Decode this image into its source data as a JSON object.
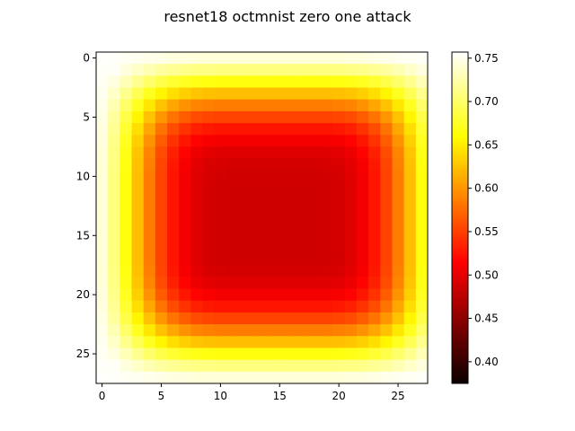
{
  "chart_data": {
    "type": "heatmap",
    "title": "resnet18 octmnist zero one attack",
    "colormap": "hot",
    "xlabel": "",
    "ylabel": "",
    "x_ticks": [
      0,
      5,
      10,
      15,
      20,
      25
    ],
    "y_ticks": [
      0,
      5,
      10,
      15,
      20,
      25
    ],
    "colorbar_ticks": [
      0.4,
      0.45,
      0.5,
      0.55,
      0.6,
      0.65,
      0.7,
      0.75
    ],
    "colorbar_tick_labels": [
      "0.40",
      "0.45",
      "0.50",
      "0.55",
      "0.60",
      "0.65",
      "0.70",
      "0.75"
    ],
    "vmin": 0.375,
    "vmax": 0.757,
    "rows": 28,
    "cols": 28,
    "values": [
      [
        0.756,
        0.755,
        0.753,
        0.751,
        0.749,
        0.747,
        0.745,
        0.744,
        0.743,
        0.742,
        0.742,
        0.742,
        0.742,
        0.742,
        0.742,
        0.742,
        0.742,
        0.742,
        0.742,
        0.742,
        0.743,
        0.744,
        0.745,
        0.747,
        0.749,
        0.751,
        0.753,
        0.755
      ],
      [
        0.755,
        0.754,
        0.745,
        0.736,
        0.728,
        0.721,
        0.716,
        0.712,
        0.71,
        0.709,
        0.708,
        0.708,
        0.708,
        0.708,
        0.708,
        0.708,
        0.708,
        0.708,
        0.708,
        0.708,
        0.709,
        0.71,
        0.712,
        0.716,
        0.721,
        0.728,
        0.736,
        0.745
      ],
      [
        0.753,
        0.745,
        0.73,
        0.714,
        0.7,
        0.688,
        0.679,
        0.672,
        0.668,
        0.666,
        0.665,
        0.665,
        0.665,
        0.665,
        0.665,
        0.665,
        0.665,
        0.665,
        0.665,
        0.665,
        0.666,
        0.668,
        0.672,
        0.679,
        0.688,
        0.7,
        0.714,
        0.73
      ],
      [
        0.751,
        0.736,
        0.714,
        0.692,
        0.672,
        0.655,
        0.642,
        0.633,
        0.627,
        0.624,
        0.623,
        0.623,
        0.623,
        0.623,
        0.623,
        0.623,
        0.623,
        0.623,
        0.623,
        0.623,
        0.624,
        0.627,
        0.633,
        0.642,
        0.655,
        0.672,
        0.692,
        0.714
      ],
      [
        0.749,
        0.728,
        0.7,
        0.672,
        0.647,
        0.625,
        0.609,
        0.598,
        0.59,
        0.587,
        0.585,
        0.585,
        0.585,
        0.585,
        0.585,
        0.585,
        0.585,
        0.585,
        0.585,
        0.585,
        0.587,
        0.59,
        0.598,
        0.609,
        0.625,
        0.647,
        0.672,
        0.7
      ],
      [
        0.747,
        0.721,
        0.688,
        0.655,
        0.625,
        0.6,
        0.58,
        0.567,
        0.558,
        0.554,
        0.552,
        0.552,
        0.552,
        0.552,
        0.552,
        0.552,
        0.552,
        0.552,
        0.552,
        0.552,
        0.554,
        0.558,
        0.567,
        0.58,
        0.6,
        0.625,
        0.655,
        0.688
      ],
      [
        0.745,
        0.716,
        0.679,
        0.642,
        0.609,
        0.58,
        0.558,
        0.543,
        0.533,
        0.528,
        0.526,
        0.526,
        0.526,
        0.526,
        0.526,
        0.526,
        0.526,
        0.526,
        0.526,
        0.526,
        0.528,
        0.533,
        0.543,
        0.558,
        0.58,
        0.609,
        0.642,
        0.679
      ],
      [
        0.744,
        0.712,
        0.672,
        0.633,
        0.598,
        0.567,
        0.543,
        0.527,
        0.516,
        0.511,
        0.509,
        0.508,
        0.508,
        0.508,
        0.508,
        0.508,
        0.508,
        0.508,
        0.508,
        0.509,
        0.511,
        0.516,
        0.527,
        0.543,
        0.567,
        0.598,
        0.633,
        0.672
      ],
      [
        0.743,
        0.71,
        0.668,
        0.627,
        0.59,
        0.558,
        0.533,
        0.516,
        0.505,
        0.499,
        0.497,
        0.496,
        0.496,
        0.496,
        0.496,
        0.496,
        0.496,
        0.496,
        0.496,
        0.497,
        0.499,
        0.505,
        0.516,
        0.533,
        0.558,
        0.59,
        0.627,
        0.668
      ],
      [
        0.742,
        0.709,
        0.666,
        0.624,
        0.587,
        0.554,
        0.528,
        0.511,
        0.499,
        0.493,
        0.491,
        0.49,
        0.49,
        0.49,
        0.49,
        0.49,
        0.49,
        0.49,
        0.49,
        0.491,
        0.493,
        0.499,
        0.511,
        0.528,
        0.554,
        0.587,
        0.624,
        0.666
      ],
      [
        0.742,
        0.708,
        0.665,
        0.623,
        0.585,
        0.552,
        0.526,
        0.509,
        0.497,
        0.491,
        0.489,
        0.488,
        0.488,
        0.488,
        0.488,
        0.488,
        0.488,
        0.488,
        0.488,
        0.489,
        0.491,
        0.497,
        0.509,
        0.526,
        0.552,
        0.585,
        0.623,
        0.665
      ],
      [
        0.742,
        0.708,
        0.665,
        0.623,
        0.585,
        0.552,
        0.526,
        0.508,
        0.496,
        0.49,
        0.488,
        0.487,
        0.487,
        0.487,
        0.487,
        0.487,
        0.487,
        0.487,
        0.487,
        0.488,
        0.49,
        0.496,
        0.508,
        0.526,
        0.552,
        0.585,
        0.623,
        0.665
      ],
      [
        0.742,
        0.708,
        0.665,
        0.623,
        0.585,
        0.552,
        0.526,
        0.508,
        0.496,
        0.49,
        0.488,
        0.487,
        0.487,
        0.487,
        0.487,
        0.487,
        0.487,
        0.487,
        0.487,
        0.488,
        0.49,
        0.496,
        0.508,
        0.526,
        0.552,
        0.585,
        0.623,
        0.665
      ],
      [
        0.742,
        0.708,
        0.665,
        0.623,
        0.585,
        0.552,
        0.526,
        0.508,
        0.496,
        0.49,
        0.488,
        0.487,
        0.487,
        0.487,
        0.487,
        0.487,
        0.487,
        0.487,
        0.487,
        0.488,
        0.49,
        0.496,
        0.508,
        0.526,
        0.552,
        0.585,
        0.623,
        0.665
      ],
      [
        0.742,
        0.708,
        0.665,
        0.623,
        0.585,
        0.552,
        0.526,
        0.508,
        0.496,
        0.49,
        0.488,
        0.487,
        0.487,
        0.487,
        0.487,
        0.487,
        0.487,
        0.487,
        0.487,
        0.488,
        0.49,
        0.496,
        0.508,
        0.526,
        0.552,
        0.585,
        0.623,
        0.665
      ],
      [
        0.742,
        0.708,
        0.665,
        0.623,
        0.585,
        0.552,
        0.526,
        0.508,
        0.496,
        0.49,
        0.488,
        0.487,
        0.487,
        0.487,
        0.487,
        0.487,
        0.487,
        0.487,
        0.487,
        0.488,
        0.49,
        0.496,
        0.508,
        0.526,
        0.552,
        0.585,
        0.623,
        0.665
      ],
      [
        0.742,
        0.708,
        0.665,
        0.623,
        0.585,
        0.552,
        0.526,
        0.508,
        0.496,
        0.49,
        0.488,
        0.487,
        0.487,
        0.487,
        0.487,
        0.487,
        0.487,
        0.487,
        0.487,
        0.488,
        0.49,
        0.496,
        0.508,
        0.526,
        0.552,
        0.585,
        0.623,
        0.665
      ],
      [
        0.742,
        0.708,
        0.665,
        0.623,
        0.585,
        0.552,
        0.526,
        0.508,
        0.496,
        0.49,
        0.488,
        0.487,
        0.487,
        0.487,
        0.487,
        0.487,
        0.487,
        0.487,
        0.487,
        0.488,
        0.49,
        0.496,
        0.508,
        0.526,
        0.552,
        0.585,
        0.623,
        0.665
      ],
      [
        0.742,
        0.709,
        0.666,
        0.624,
        0.587,
        0.554,
        0.528,
        0.511,
        0.499,
        0.493,
        0.491,
        0.49,
        0.49,
        0.49,
        0.49,
        0.49,
        0.49,
        0.49,
        0.49,
        0.491,
        0.493,
        0.499,
        0.511,
        0.528,
        0.554,
        0.587,
        0.624,
        0.666
      ],
      [
        0.743,
        0.71,
        0.668,
        0.627,
        0.59,
        0.558,
        0.533,
        0.516,
        0.505,
        0.499,
        0.497,
        0.496,
        0.496,
        0.496,
        0.496,
        0.496,
        0.496,
        0.496,
        0.496,
        0.497,
        0.499,
        0.505,
        0.516,
        0.533,
        0.558,
        0.59,
        0.627,
        0.668
      ],
      [
        0.744,
        0.712,
        0.672,
        0.633,
        0.598,
        0.567,
        0.543,
        0.527,
        0.516,
        0.511,
        0.509,
        0.508,
        0.508,
        0.508,
        0.508,
        0.508,
        0.508,
        0.508,
        0.508,
        0.509,
        0.511,
        0.516,
        0.527,
        0.543,
        0.567,
        0.598,
        0.633,
        0.672
      ],
      [
        0.745,
        0.716,
        0.679,
        0.642,
        0.609,
        0.58,
        0.558,
        0.543,
        0.533,
        0.528,
        0.526,
        0.526,
        0.526,
        0.526,
        0.526,
        0.526,
        0.526,
        0.526,
        0.526,
        0.526,
        0.528,
        0.533,
        0.543,
        0.558,
        0.58,
        0.609,
        0.642,
        0.679
      ],
      [
        0.747,
        0.721,
        0.688,
        0.655,
        0.625,
        0.6,
        0.58,
        0.567,
        0.558,
        0.554,
        0.552,
        0.552,
        0.552,
        0.552,
        0.552,
        0.552,
        0.552,
        0.552,
        0.552,
        0.552,
        0.554,
        0.558,
        0.567,
        0.58,
        0.6,
        0.625,
        0.655,
        0.688
      ],
      [
        0.749,
        0.728,
        0.7,
        0.672,
        0.647,
        0.625,
        0.609,
        0.598,
        0.59,
        0.587,
        0.585,
        0.585,
        0.585,
        0.585,
        0.585,
        0.585,
        0.585,
        0.585,
        0.585,
        0.585,
        0.587,
        0.59,
        0.598,
        0.609,
        0.625,
        0.647,
        0.672,
        0.7
      ],
      [
        0.751,
        0.736,
        0.714,
        0.692,
        0.672,
        0.655,
        0.642,
        0.633,
        0.627,
        0.624,
        0.623,
        0.623,
        0.623,
        0.623,
        0.623,
        0.623,
        0.623,
        0.623,
        0.623,
        0.623,
        0.624,
        0.627,
        0.633,
        0.642,
        0.655,
        0.672,
        0.692,
        0.714
      ],
      [
        0.753,
        0.745,
        0.73,
        0.714,
        0.7,
        0.688,
        0.679,
        0.672,
        0.668,
        0.666,
        0.665,
        0.665,
        0.665,
        0.665,
        0.665,
        0.665,
        0.665,
        0.665,
        0.665,
        0.665,
        0.666,
        0.668,
        0.672,
        0.679,
        0.688,
        0.7,
        0.714,
        0.73
      ],
      [
        0.755,
        0.754,
        0.745,
        0.736,
        0.728,
        0.721,
        0.716,
        0.712,
        0.71,
        0.709,
        0.708,
        0.708,
        0.708,
        0.708,
        0.708,
        0.708,
        0.708,
        0.708,
        0.708,
        0.708,
        0.709,
        0.71,
        0.712,
        0.716,
        0.721,
        0.728,
        0.736,
        0.745
      ],
      [
        0.756,
        0.755,
        0.753,
        0.751,
        0.749,
        0.747,
        0.745,
        0.744,
        0.743,
        0.742,
        0.742,
        0.742,
        0.742,
        0.742,
        0.742,
        0.742,
        0.742,
        0.742,
        0.742,
        0.742,
        0.743,
        0.744,
        0.745,
        0.747,
        0.749,
        0.751,
        0.753,
        0.755
      ]
    ]
  }
}
